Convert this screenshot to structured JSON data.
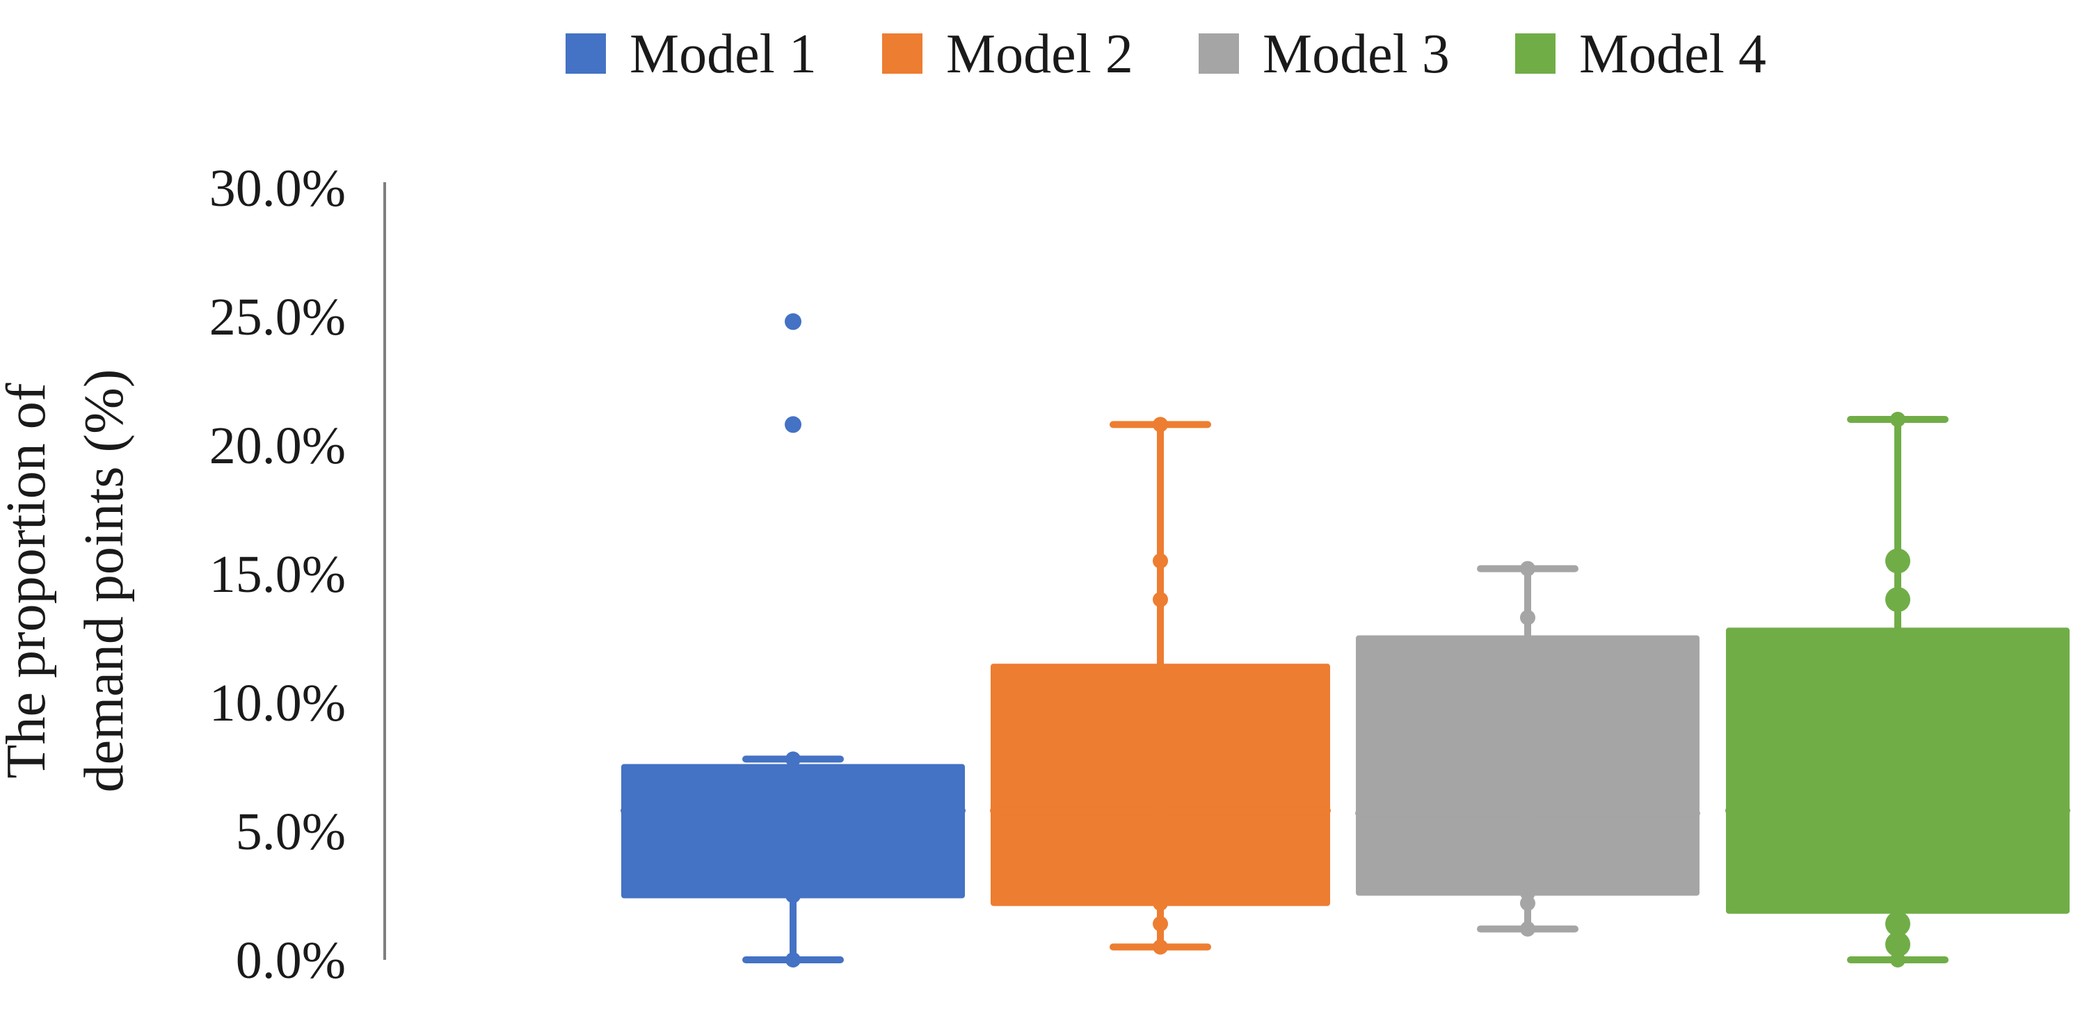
{
  "chart_data": {
    "type": "boxplot",
    "title": "",
    "xlabel": "",
    "ylabel_lines": [
      "The proportion of",
      "demand points (%)"
    ],
    "ylim": [
      0,
      30
    ],
    "y_ticks": [
      "0.0%",
      "5.0%",
      "10.0%",
      "15.0%",
      "20.0%",
      "25.0%",
      "30.0%"
    ],
    "y_tick_values": [
      0,
      5,
      10,
      15,
      20,
      25,
      30
    ],
    "grid": false,
    "legend_position": "top",
    "series": [
      {
        "name": "Model 1",
        "color": "#4472C4",
        "min": 0.0,
        "q1": 2.5,
        "median": 5.8,
        "q3": 7.5,
        "max": 7.8,
        "points": [
          0.0,
          2.5,
          5.8,
          7.8
        ],
        "outliers": [
          24.8,
          20.8
        ]
      },
      {
        "name": "Model 2",
        "color": "#ED7D31",
        "min": 0.5,
        "q1": 2.2,
        "median": 5.8,
        "q3": 11.4,
        "max": 20.8,
        "points": [
          0.5,
          1.4,
          2.2,
          5.8,
          14.0,
          15.5,
          20.8
        ],
        "outliers": []
      },
      {
        "name": "Model 3",
        "color": "#A5A5A5",
        "min": 1.2,
        "q1": 2.6,
        "median": 5.7,
        "q3": 12.5,
        "max": 15.2,
        "points": [
          1.2,
          2.2,
          2.6,
          5.7,
          13.3,
          15.2
        ],
        "outliers": []
      },
      {
        "name": "Model 4",
        "color": "#70AD47",
        "min": 0.0,
        "q1": 1.9,
        "median": 5.8,
        "q3": 12.8,
        "max": 21.0,
        "points": [
          0.0,
          0.6,
          1.4,
          14.0,
          15.5,
          21.0
        ],
        "big_points": [
          0.6,
          1.4,
          14.0,
          15.5
        ],
        "outliers": []
      }
    ]
  }
}
